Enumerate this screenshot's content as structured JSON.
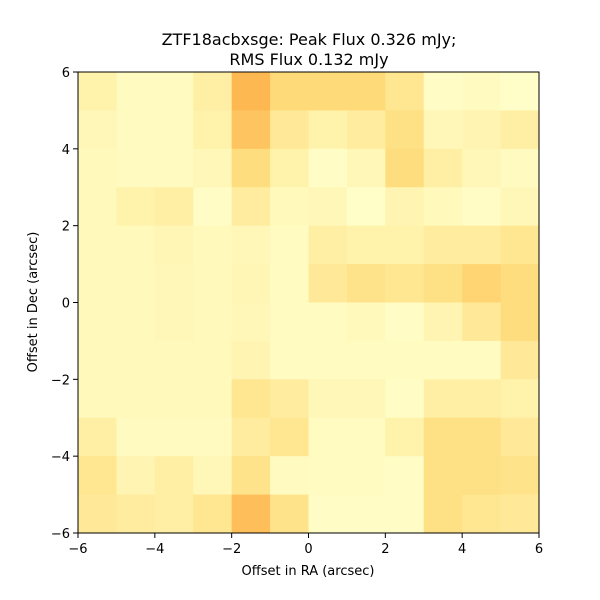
{
  "chart_data": {
    "type": "heatmap",
    "title_line1": "ZTF18acbxsge: Peak Flux 0.326 mJy;",
    "title_line2": "RMS Flux 0.132 mJy",
    "xlabel": "Offset in RA (arcsec)",
    "ylabel": "Offset in Dec (arcsec)",
    "xlim": [
      -6,
      6
    ],
    "ylim": [
      -6,
      6
    ],
    "xticks": [
      -6,
      -4,
      -2,
      0,
      2,
      4,
      6
    ],
    "yticks": [
      -6,
      -4,
      -2,
      0,
      2,
      4,
      6
    ],
    "xtick_labels": [
      "−6",
      "−4",
      "−2",
      "0",
      "2",
      "4",
      "6"
    ],
    "ytick_labels": [
      "−6",
      "−4",
      "−2",
      "0",
      "2",
      "4",
      "6"
    ],
    "cell_size_arcsec": 1,
    "colormap": [
      "#ffffcc",
      "#ffeda0",
      "#fed976",
      "#feb24c"
    ],
    "value_range": [
      0,
      1
    ],
    "rows_top_to_bottom": [
      [
        0.25,
        0.1,
        0.1,
        0.3,
        0.95,
        0.65,
        0.65,
        0.65,
        0.45,
        0.05,
        0.1,
        0.02
      ],
      [
        0.15,
        0.1,
        0.1,
        0.25,
        0.85,
        0.4,
        0.25,
        0.35,
        0.55,
        0.15,
        0.2,
        0.3
      ],
      [
        0.12,
        0.1,
        0.1,
        0.15,
        0.6,
        0.25,
        0.05,
        0.15,
        0.6,
        0.3,
        0.15,
        0.1
      ],
      [
        0.12,
        0.25,
        0.3,
        0.05,
        0.35,
        0.12,
        0.15,
        0.02,
        0.2,
        0.12,
        0.05,
        0.15
      ],
      [
        0.12,
        0.12,
        0.18,
        0.12,
        0.15,
        0.08,
        0.3,
        0.25,
        0.25,
        0.35,
        0.35,
        0.45
      ],
      [
        0.12,
        0.12,
        0.15,
        0.12,
        0.18,
        0.08,
        0.4,
        0.5,
        0.45,
        0.55,
        0.7,
        0.6
      ],
      [
        0.12,
        0.12,
        0.15,
        0.12,
        0.15,
        0.08,
        0.08,
        0.12,
        0.05,
        0.2,
        0.4,
        0.6
      ],
      [
        0.12,
        0.12,
        0.12,
        0.12,
        0.2,
        0.08,
        0.08,
        0.08,
        0.08,
        0.08,
        0.08,
        0.4
      ],
      [
        0.12,
        0.12,
        0.12,
        0.12,
        0.45,
        0.35,
        0.15,
        0.15,
        0.05,
        0.3,
        0.3,
        0.25
      ],
      [
        0.3,
        0.1,
        0.1,
        0.1,
        0.35,
        0.45,
        0.08,
        0.08,
        0.25,
        0.55,
        0.55,
        0.4
      ],
      [
        0.45,
        0.2,
        0.3,
        0.15,
        0.5,
        0.1,
        0.08,
        0.08,
        0.05,
        0.55,
        0.55,
        0.5
      ],
      [
        0.4,
        0.35,
        0.3,
        0.45,
        0.9,
        0.5,
        0.05,
        0.05,
        0.05,
        0.55,
        0.45,
        0.4
      ]
    ]
  }
}
